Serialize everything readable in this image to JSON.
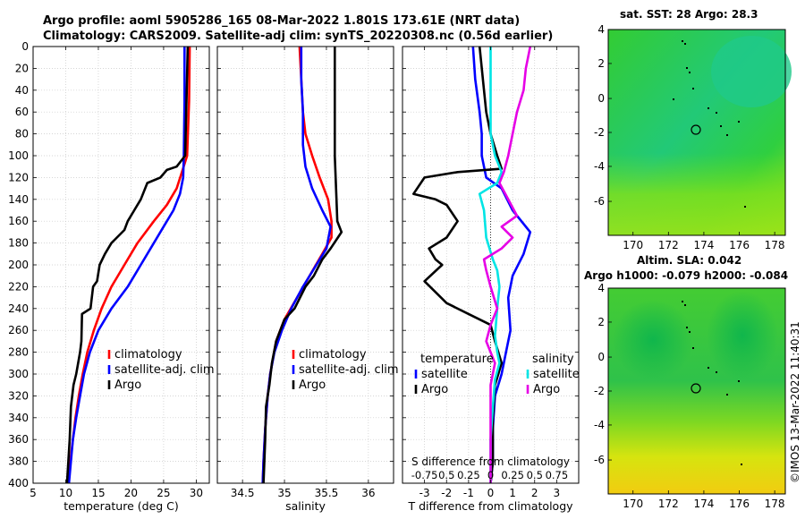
{
  "header": {
    "line1": "Argo profile: aoml 5905286_165 08-Mar-2022 1.801S 173.61E (NRT data)",
    "line2": "Climatology: CARS2009. Satellite-adj clim: synTS_20220308.nc (0.56d earlier)"
  },
  "credit": "©IMOS 13-Mar-2022 11:40:31",
  "colors": {
    "climatology": "#ff0000",
    "satellite": "#0000ff",
    "argo": "#000000",
    "sat_salinity": "#00e5e5",
    "argo_salinity": "#e600e6"
  },
  "chart_data": [
    {
      "id": "temperature",
      "type": "line",
      "xlabel": "temperature (deg C)",
      "ylabel": "",
      "xlim": [
        5,
        32
      ],
      "ylim": [
        400,
        0
      ],
      "xticks": [
        5,
        10,
        15,
        20,
        25,
        30
      ],
      "yticks": [
        0,
        20,
        40,
        60,
        80,
        100,
        120,
        140,
        160,
        180,
        200,
        220,
        240,
        260,
        280,
        300,
        320,
        340,
        360,
        380,
        400
      ],
      "legend": [
        "climatology",
        "satellite-adj. clim",
        "Argo"
      ],
      "legend_position": "lower-right",
      "series": [
        {
          "name": "climatology",
          "color": "#ff0000",
          "points": [
            [
              29.0,
              0
            ],
            [
              28.9,
              50
            ],
            [
              28.6,
              100
            ],
            [
              27.8,
              115
            ],
            [
              27.0,
              130
            ],
            [
              25.5,
              145
            ],
            [
              23.5,
              160
            ],
            [
              21.0,
              180
            ],
            [
              19.0,
              200
            ],
            [
              17.0,
              220
            ],
            [
              15.5,
              240
            ],
            [
              14.3,
              260
            ],
            [
              13.3,
              280
            ],
            [
              12.6,
              300
            ],
            [
              12.0,
              320
            ],
            [
              11.5,
              340
            ],
            [
              11.1,
              360
            ],
            [
              10.7,
              380
            ],
            [
              10.4,
              400
            ]
          ]
        },
        {
          "name": "satellite-adj. clim",
          "color": "#0000ff",
          "points": [
            [
              28.2,
              0
            ],
            [
              28.2,
              50
            ],
            [
              28.1,
              100
            ],
            [
              28.0,
              120
            ],
            [
              27.5,
              135
            ],
            [
              26.5,
              150
            ],
            [
              25.0,
              165
            ],
            [
              23.5,
              180
            ],
            [
              21.5,
              200
            ],
            [
              19.5,
              220
            ],
            [
              17.0,
              240
            ],
            [
              15.0,
              260
            ],
            [
              13.7,
              280
            ],
            [
              12.8,
              300
            ],
            [
              12.2,
              320
            ],
            [
              11.6,
              340
            ],
            [
              11.1,
              360
            ],
            [
              10.8,
              380
            ],
            [
              10.5,
              400
            ]
          ]
        },
        {
          "name": "Argo",
          "color": "#000000",
          "points": [
            [
              28.7,
              0
            ],
            [
              28.5,
              50
            ],
            [
              28.3,
              100
            ],
            [
              27.0,
              110
            ],
            [
              25.5,
              113
            ],
            [
              24.5,
              120
            ],
            [
              22.5,
              125
            ],
            [
              21.5,
              140
            ],
            [
              20.5,
              150
            ],
            [
              19.5,
              160
            ],
            [
              19.0,
              168
            ],
            [
              17.0,
              180
            ],
            [
              16.0,
              190
            ],
            [
              15.2,
              200
            ],
            [
              14.8,
              215
            ],
            [
              14.2,
              220
            ],
            [
              13.8,
              240
            ],
            [
              12.5,
              245
            ],
            [
              12.4,
              270
            ],
            [
              12.2,
              280
            ],
            [
              11.6,
              300
            ],
            [
              11.2,
              310
            ],
            [
              10.8,
              330
            ],
            [
              10.6,
              360
            ],
            [
              10.4,
              380
            ],
            [
              10.2,
              400
            ]
          ]
        }
      ]
    },
    {
      "id": "salinity",
      "type": "line",
      "xlabel": "salinity",
      "xlim": [
        34.2,
        36.3
      ],
      "ylim": [
        400,
        0
      ],
      "xticks": [
        34.5,
        35,
        35.5,
        36
      ],
      "xticklabels": [
        "34.5",
        "35",
        "35.5",
        "36"
      ],
      "legend": [
        "climatology",
        "satellite-adj. clim",
        "Argo"
      ],
      "legend_position": "lower-right",
      "series": [
        {
          "name": "climatology",
          "color": "#ff0000",
          "points": [
            [
              35.18,
              0
            ],
            [
              35.2,
              30
            ],
            [
              35.22,
              60
            ],
            [
              35.25,
              80
            ],
            [
              35.33,
              100
            ],
            [
              35.42,
              120
            ],
            [
              35.52,
              140
            ],
            [
              35.56,
              160
            ],
            [
              35.56,
              175
            ],
            [
              35.45,
              190
            ],
            [
              35.3,
              210
            ],
            [
              35.15,
              230
            ],
            [
              35.0,
              250
            ],
            [
              34.9,
              270
            ],
            [
              34.83,
              300
            ],
            [
              34.8,
              320
            ],
            [
              34.77,
              350
            ],
            [
              34.75,
              380
            ],
            [
              34.74,
              400
            ]
          ]
        },
        {
          "name": "satellite-adj. clim",
          "color": "#0000ff",
          "points": [
            [
              35.2,
              0
            ],
            [
              35.2,
              30
            ],
            [
              35.22,
              60
            ],
            [
              35.22,
              90
            ],
            [
              35.25,
              110
            ],
            [
              35.33,
              130
            ],
            [
              35.45,
              150
            ],
            [
              35.55,
              165
            ],
            [
              35.5,
              185
            ],
            [
              35.38,
              200
            ],
            [
              35.22,
              220
            ],
            [
              35.08,
              240
            ],
            [
              34.97,
              260
            ],
            [
              34.88,
              280
            ],
            [
              34.83,
              300
            ],
            [
              34.8,
              320
            ],
            [
              34.77,
              350
            ],
            [
              34.75,
              380
            ],
            [
              34.74,
              400
            ]
          ]
        },
        {
          "name": "Argo",
          "color": "#000000",
          "points": [
            [
              35.6,
              0
            ],
            [
              35.6,
              50
            ],
            [
              35.6,
              100
            ],
            [
              35.62,
              140
            ],
            [
              35.63,
              160
            ],
            [
              35.68,
              170
            ],
            [
              35.55,
              185
            ],
            [
              35.45,
              195
            ],
            [
              35.35,
              210
            ],
            [
              35.25,
              220
            ],
            [
              35.12,
              240
            ],
            [
              35.0,
              250
            ],
            [
              34.9,
              270
            ],
            [
              34.85,
              290
            ],
            [
              34.82,
              310
            ],
            [
              34.78,
              330
            ],
            [
              34.77,
              360
            ],
            [
              34.75,
              400
            ]
          ]
        }
      ]
    },
    {
      "id": "difference",
      "type": "line",
      "xlabel": "T difference from climatology",
      "top_xlabel": "S difference from climatology",
      "xlim": [
        -4,
        4
      ],
      "ylim": [
        400,
        0
      ],
      "xticks": [
        -3,
        -2,
        -1,
        0,
        1,
        2,
        3
      ],
      "xticklabels": [
        "-3",
        "-2",
        "-1",
        "0",
        "1",
        "2",
        "3"
      ],
      "top_xticklabels": [
        "-0.75",
        "0.5",
        "0.25",
        "0",
        "0.25",
        "0.5",
        "0.75"
      ],
      "legend_groups": [
        {
          "title": "temperature",
          "entries": [
            "satellite",
            "Argo"
          ]
        },
        {
          "title": "salinity",
          "entries": [
            "satellite",
            "Argo"
          ]
        }
      ],
      "series": [
        {
          "name": "temperature satellite",
          "color": "#0000ff",
          "points": [
            [
              -0.8,
              0
            ],
            [
              -0.7,
              30
            ],
            [
              -0.5,
              60
            ],
            [
              -0.4,
              80
            ],
            [
              -0.4,
              100
            ],
            [
              -0.2,
              120
            ],
            [
              0.5,
              130
            ],
            [
              1.0,
              150
            ],
            [
              1.8,
              170
            ],
            [
              1.5,
              190
            ],
            [
              1.0,
              210
            ],
            [
              0.8,
              230
            ],
            [
              0.9,
              260
            ],
            [
              0.7,
              280
            ],
            [
              0.5,
              300
            ],
            [
              0.2,
              320
            ],
            [
              0.1,
              350
            ],
            [
              0.1,
              380
            ],
            [
              0.0,
              400
            ]
          ]
        },
        {
          "name": "temperature Argo",
          "color": "#000000",
          "points": [
            [
              -0.5,
              0
            ],
            [
              -0.3,
              40
            ],
            [
              -0.2,
              60
            ],
            [
              0.0,
              80
            ],
            [
              0.3,
              100
            ],
            [
              0.5,
              112
            ],
            [
              -1.5,
              115
            ],
            [
              -3.0,
              120
            ],
            [
              -3.5,
              135
            ],
            [
              -2.5,
              140
            ],
            [
              -2.0,
              145
            ],
            [
              -1.5,
              160
            ],
            [
              -2.0,
              175
            ],
            [
              -2.8,
              185
            ],
            [
              -2.5,
              195
            ],
            [
              -2.2,
              200
            ],
            [
              -3.0,
              215
            ],
            [
              -2.0,
              235
            ],
            [
              -1.0,
              245
            ],
            [
              0.0,
              255
            ],
            [
              0.2,
              270
            ],
            [
              0.5,
              290
            ],
            [
              0.2,
              310
            ],
            [
              0.1,
              340
            ],
            [
              0.1,
              380
            ],
            [
              0.0,
              400
            ]
          ]
        },
        {
          "name": "salinity satellite",
          "color": "#00e5e5",
          "points": [
            [
              0.0,
              0
            ],
            [
              0.0,
              50
            ],
            [
              0.0,
              80
            ],
            [
              0.2,
              100
            ],
            [
              0.5,
              115
            ],
            [
              0.3,
              125
            ],
            [
              -0.5,
              135
            ],
            [
              -0.3,
              150
            ],
            [
              -0.2,
              175
            ],
            [
              0.1,
              195
            ],
            [
              0.3,
              205
            ],
            [
              0.4,
              220
            ],
            [
              0.3,
              240
            ],
            [
              0.2,
              265
            ],
            [
              0.3,
              280
            ],
            [
              0.4,
              290
            ],
            [
              0.2,
              305
            ],
            [
              0.1,
              330
            ],
            [
              0.0,
              360
            ],
            [
              0.0,
              400
            ]
          ]
        },
        {
          "name": "salinity Argo",
          "color": "#e600e6",
          "points": [
            [
              1.8,
              0
            ],
            [
              1.6,
              20
            ],
            [
              1.5,
              40
            ],
            [
              1.2,
              60
            ],
            [
              1.0,
              80
            ],
            [
              0.8,
              100
            ],
            [
              0.6,
              115
            ],
            [
              0.4,
              125
            ],
            [
              0.8,
              140
            ],
            [
              1.2,
              155
            ],
            [
              0.5,
              165
            ],
            [
              1.0,
              175
            ],
            [
              0.5,
              185
            ],
            [
              -0.3,
              195
            ],
            [
              -0.2,
              205
            ],
            [
              0.0,
              220
            ],
            [
              0.3,
              240
            ],
            [
              0.0,
              255
            ],
            [
              -0.2,
              270
            ],
            [
              0.2,
              290
            ],
            [
              0.0,
              310
            ],
            [
              0.0,
              340
            ],
            [
              0.0,
              380
            ],
            [
              0.0,
              400
            ]
          ]
        }
      ]
    }
  ],
  "maps": [
    {
      "id": "sst-map",
      "title": "sat. SST: 28 Argo: 28.3",
      "xticks": [
        "170",
        "172",
        "174",
        "176",
        "178"
      ],
      "yticks": [
        "4",
        "2",
        "0",
        "-2",
        "-4",
        "-6"
      ]
    },
    {
      "id": "sla-map",
      "title_line1": "Altim. SLA: 0.042",
      "title_line2": "Argo h1000: -0.079 h2000: -0.084",
      "xticks": [
        "170",
        "172",
        "174",
        "176",
        "178"
      ],
      "yticks": [
        "4",
        "2",
        "0",
        "-2",
        "-4",
        "-6"
      ]
    }
  ]
}
